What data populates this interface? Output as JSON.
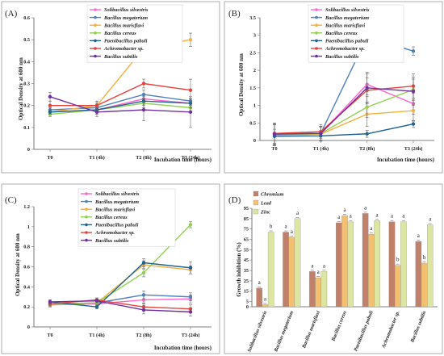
{
  "chart_data": [
    {
      "type": "line",
      "panel_label": "(A)",
      "ylabel": "Optical Density at 600 nm",
      "xlabel": "Incubation time (hours)",
      "categories": [
        "T0",
        "T1 (4h)",
        "T2 (8h)",
        "T3 (24h)"
      ],
      "ylim": [
        0,
        0.6
      ],
      "yticks": [
        "0",
        "0.1",
        "0.2",
        "0.3",
        "0.4",
        "0.5",
        "0.6"
      ],
      "legend_position": "top-left",
      "series": [
        {
          "name": "Solibacillus silvestris",
          "color": "#ff66cc",
          "values": [
            0.17,
            0.18,
            0.23,
            0.21
          ],
          "err": [
            0.01,
            0.01,
            0.02,
            0.02
          ]
        },
        {
          "name": "Bacillus megaterium",
          "color": "#4f81bd",
          "values": [
            0.18,
            0.19,
            0.25,
            0.22
          ],
          "err": [
            0.01,
            0.02,
            0.02,
            0.02
          ]
        },
        {
          "name": "Bacillus marisflavi",
          "color": "#f5b041",
          "values": [
            0.17,
            0.2,
            0.46,
            0.5
          ],
          "err": [
            0.01,
            0.02,
            0.03,
            0.03
          ]
        },
        {
          "name": "Bacillus cereus",
          "color": "#92d050",
          "values": [
            0.16,
            0.18,
            0.21,
            0.19
          ],
          "err": [
            0.01,
            0.01,
            0.02,
            0.02
          ]
        },
        {
          "name": "Paenibacillus pabuli",
          "color": "#1f6391",
          "values": [
            0.17,
            0.18,
            0.22,
            0.21
          ],
          "err": [
            0.01,
            0.02,
            0.02,
            0.02
          ]
        },
        {
          "name": "Achromobacter sp.",
          "color": "#e8413c",
          "values": [
            0.2,
            0.2,
            0.3,
            0.27
          ],
          "err": [
            0.02,
            0.02,
            0.02,
            0.05
          ]
        },
        {
          "name": "Bacillus subtilis",
          "color": "#7030a0",
          "values": [
            0.24,
            0.17,
            0.18,
            0.17
          ],
          "err": [
            0.02,
            0.02,
            0.05,
            0.07
          ]
        }
      ]
    },
    {
      "type": "line",
      "panel_label": "(B)",
      "ylabel": "Optical Density at 600 nm",
      "xlabel": "Incubation time (hours)",
      "categories": [
        "T0",
        "T1 (4h)",
        "T2 (8h)",
        "T3 (24h)"
      ],
      "ylim": [
        0,
        3.5
      ],
      "yticks": [
        "0",
        "0.5",
        "1",
        "1.5",
        "2",
        "2.5",
        "3",
        "3.5"
      ],
      "legend_position": "top-left",
      "series": [
        {
          "name": "Solibacillus silvestris",
          "color": "#ff66cc",
          "values": [
            0.18,
            0.2,
            1.6,
            1.05
          ],
          "err": [
            0.3,
            0.2,
            0.3,
            0.3
          ]
        },
        {
          "name": "Bacillus megaterium",
          "color": "#4f81bd",
          "values": [
            0.2,
            0.2,
            2.95,
            2.55
          ],
          "err": [
            0.3,
            0.2,
            0.25,
            0.12
          ]
        },
        {
          "name": "Bacillus marisflavi",
          "color": "#f5b041",
          "values": [
            0.15,
            0.18,
            0.75,
            0.85
          ],
          "err": [
            0.3,
            0.2,
            0.35,
            0.3
          ]
        },
        {
          "name": "Bacillus cereus",
          "color": "#92d050",
          "values": [
            0.15,
            0.2,
            0.95,
            1.45
          ],
          "err": [
            0.3,
            0.2,
            0.3,
            0.3
          ]
        },
        {
          "name": "Paenibacillus pabuli",
          "color": "#1f6391",
          "values": [
            0.12,
            0.13,
            0.19,
            0.47
          ],
          "err": [
            0.2,
            0.15,
            0.1,
            0.1
          ]
        },
        {
          "name": "Achromobacter sp.",
          "color": "#e8413c",
          "values": [
            0.2,
            0.25,
            1.43,
            1.55
          ],
          "err": [
            0.3,
            0.2,
            0.35,
            0.35
          ]
        },
        {
          "name": "Bacillus subtilis",
          "color": "#7030a0",
          "values": [
            0.18,
            0.2,
            1.5,
            1.4
          ],
          "err": [
            0.3,
            0.2,
            0.45,
            0.4
          ]
        }
      ]
    },
    {
      "type": "line",
      "panel_label": "(C)",
      "ylabel": "Optical Density at 600 nm",
      "xlabel": "Incubation time (hours)",
      "categories": [
        "T0",
        "T1 (4h)",
        "T2 (8h)",
        "T3 (24h)"
      ],
      "ylim": [
        0,
        1.2
      ],
      "yticks": [
        "0",
        "0.2",
        "0.4",
        "0.6",
        "0.8",
        "1",
        "1.2"
      ],
      "legend_position": "top-center",
      "series": [
        {
          "name": "Solibacillus silvestris",
          "color": "#ff66cc",
          "values": [
            0.22,
            0.23,
            0.27,
            0.28
          ],
          "err": [
            0.02,
            0.02,
            0.04,
            0.04
          ]
        },
        {
          "name": "Bacillus megaterium",
          "color": "#4f81bd",
          "values": [
            0.23,
            0.24,
            0.32,
            0.3
          ],
          "err": [
            0.02,
            0.02,
            0.04,
            0.04
          ]
        },
        {
          "name": "Bacillus marisflavi",
          "color": "#f5b041",
          "values": [
            0.22,
            0.24,
            0.62,
            0.57
          ],
          "err": [
            0.02,
            0.02,
            0.04,
            0.04
          ]
        },
        {
          "name": "Bacillus cereus",
          "color": "#92d050",
          "values": [
            0.22,
            0.24,
            0.54,
            1.02
          ],
          "err": [
            0.02,
            0.02,
            0.04,
            0.03
          ]
        },
        {
          "name": "Paenibacillus pabuli",
          "color": "#1f6391",
          "values": [
            0.25,
            0.2,
            0.64,
            0.59
          ],
          "err": [
            0.02,
            0.02,
            0.04,
            0.06
          ]
        },
        {
          "name": "Achromobacter sp.",
          "color": "#e8413c",
          "values": [
            0.23,
            0.27,
            0.2,
            0.18
          ],
          "err": [
            0.02,
            0.02,
            0.04,
            0.04
          ]
        },
        {
          "name": "Bacillus subtilis",
          "color": "#7030a0",
          "values": [
            0.25,
            0.26,
            0.17,
            0.15
          ],
          "err": [
            0.02,
            0.02,
            0.04,
            0.04
          ]
        }
      ]
    },
    {
      "type": "bar",
      "panel_label": "(D)",
      "ylabel": "Growth inhibition (%)",
      "categories": [
        "Solibacillus silvestris",
        "Bacillus megaterium",
        "Bacillus marisflavi",
        "Bacillus cereus",
        "Paenibacillus pabuli",
        "Achromobacter sp.",
        "Bacillus subtilis"
      ],
      "ylim": [
        0,
        95
      ],
      "yticks": [
        "0",
        "5",
        "15",
        "25",
        "35",
        "45",
        "55",
        "65",
        "75",
        "85",
        "95"
      ],
      "legend_position": "top-left",
      "series": [
        {
          "name": "Chromium",
          "color": "#c0806a",
          "values": [
            18,
            72,
            34,
            81,
            90,
            82,
            63
          ],
          "letters": [
            "a",
            "a",
            "a",
            "a",
            "a",
            "a",
            "a"
          ]
        },
        {
          "name": "Lead",
          "color": "#f2c070",
          "values": [
            2,
            67,
            28,
            88,
            70,
            40,
            42
          ],
          "letters": [
            "a",
            "a",
            "a",
            "a",
            "a",
            "b",
            "b"
          ]
        },
        {
          "name": "Zinc",
          "color": "#dce6a0",
          "values": [
            72,
            85,
            34,
            82,
            83,
            82,
            79
          ],
          "letters": [
            "b",
            "a",
            "a",
            "a",
            "a",
            "a",
            "a"
          ]
        }
      ]
    }
  ]
}
